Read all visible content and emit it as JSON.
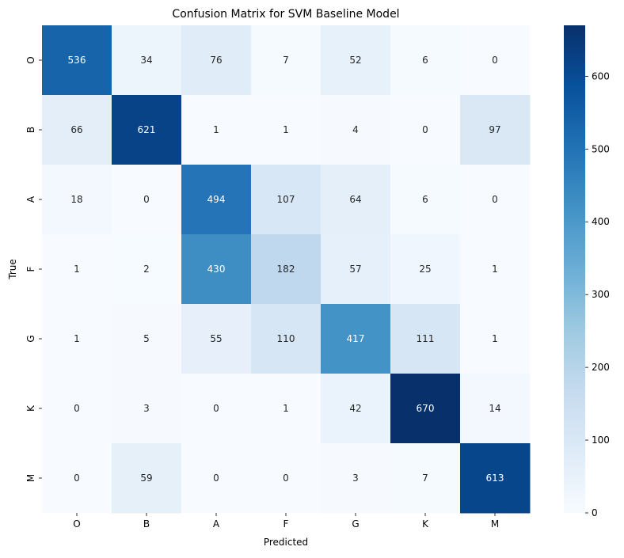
{
  "chart_data": {
    "type": "heatmap",
    "title": "Confusion Matrix for SVM Baseline Model",
    "xlabel": "Predicted",
    "ylabel": "True",
    "x_categories": [
      "O",
      "B",
      "A",
      "F",
      "G",
      "K",
      "M"
    ],
    "y_categories": [
      "O",
      "B",
      "A",
      "F",
      "G",
      "K",
      "M"
    ],
    "values": [
      [
        536,
        34,
        76,
        7,
        52,
        6,
        0
      ],
      [
        66,
        621,
        1,
        1,
        4,
        0,
        97
      ],
      [
        18,
        0,
        494,
        107,
        64,
        6,
        0
      ],
      [
        1,
        2,
        430,
        182,
        57,
        25,
        1
      ],
      [
        1,
        5,
        55,
        110,
        417,
        111,
        1
      ],
      [
        0,
        3,
        0,
        1,
        42,
        670,
        14
      ],
      [
        0,
        59,
        0,
        0,
        3,
        7,
        613
      ]
    ],
    "colormap": "Blues",
    "color_range": [
      0,
      670
    ],
    "colorbar_ticks": [
      0,
      100,
      200,
      300,
      400,
      500,
      600
    ],
    "colors": [
      "#f7fbff",
      "#deebf7",
      "#c6dbef",
      "#9ecae1",
      "#6baed6",
      "#4292c6",
      "#2171b5",
      "#08519c",
      "#08306b"
    ]
  }
}
